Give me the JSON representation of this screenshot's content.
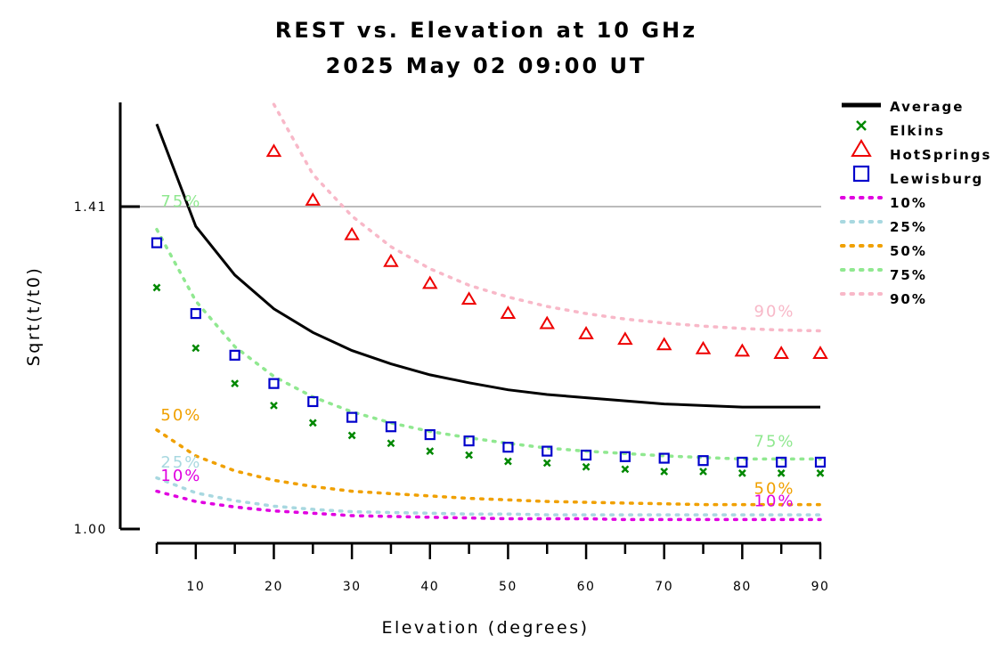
{
  "chart_data": {
    "type": "scatter",
    "title": "REST vs. Elevation at 10 GHz",
    "subtitle": "2025 May 02 09:00 UT",
    "xlabel": "Elevation (degrees)",
    "ylabel": "Sqrt(t/t0)",
    "xlim": [
      5,
      90
    ],
    "ylim": [
      1.0,
      1.54
    ],
    "x_ticks": [
      "10",
      "20",
      "30",
      "40",
      "50",
      "60",
      "70",
      "80",
      "90"
    ],
    "y_ticks": [
      "1.00",
      "1.41"
    ],
    "reference_line": 1.41,
    "legend_position": "right",
    "legend": [
      "Average",
      "Elkins",
      "HotSprings",
      "Lewisburg",
      "10%",
      "25%",
      "50%",
      "75%",
      "90%"
    ],
    "series": [
      {
        "name": "Average",
        "style": "line",
        "color": "#000000",
        "x": [
          5,
          10,
          15,
          20,
          25,
          30,
          35,
          40,
          45,
          50,
          55,
          60,
          65,
          70,
          75,
          80,
          85,
          90
        ],
        "y": [
          1.515,
          1.385,
          1.323,
          1.28,
          1.25,
          1.227,
          1.21,
          1.196,
          1.186,
          1.177,
          1.171,
          1.167,
          1.163,
          1.159,
          1.157,
          1.155,
          1.155,
          1.155
        ]
      },
      {
        "name": "Elkins",
        "style": "x",
        "color": "#008800",
        "x": [
          5,
          10,
          15,
          20,
          25,
          30,
          35,
          40,
          45,
          50,
          55,
          60,
          65,
          70,
          75,
          80,
          85,
          90
        ],
        "y": [
          1.307,
          1.23,
          1.185,
          1.157,
          1.135,
          1.119,
          1.109,
          1.099,
          1.094,
          1.086,
          1.084,
          1.079,
          1.076,
          1.073,
          1.073,
          1.071,
          1.071,
          1.071
        ]
      },
      {
        "name": "HotSprings",
        "style": "triangle",
        "color": "#ee0000",
        "x": [
          20,
          25,
          30,
          35,
          40,
          45,
          50,
          55,
          60,
          65,
          70,
          75,
          80,
          85,
          90
        ],
        "y": [
          1.48,
          1.418,
          1.374,
          1.34,
          1.312,
          1.292,
          1.274,
          1.261,
          1.248,
          1.241,
          1.234,
          1.229,
          1.226,
          1.223,
          1.223
        ]
      },
      {
        "name": "Lewisburg",
        "style": "square",
        "color": "#0000cc",
        "x": [
          5,
          10,
          15,
          20,
          25,
          30,
          35,
          40,
          45,
          50,
          55,
          60,
          65,
          70,
          75,
          80,
          85,
          90
        ],
        "y": [
          1.364,
          1.274,
          1.221,
          1.185,
          1.162,
          1.142,
          1.13,
          1.12,
          1.112,
          1.104,
          1.099,
          1.094,
          1.092,
          1.09,
          1.087,
          1.085,
          1.085,
          1.085
        ]
      },
      {
        "name": "10%",
        "style": "dotted",
        "color": "#e000e0",
        "x": [
          5,
          10,
          15,
          20,
          25,
          30,
          35,
          40,
          45,
          50,
          55,
          60,
          65,
          70,
          75,
          80,
          85,
          90
        ],
        "y": [
          1.048,
          1.035,
          1.028,
          1.023,
          1.02,
          1.017,
          1.016,
          1.015,
          1.014,
          1.013,
          1.013,
          1.013,
          1.012,
          1.012,
          1.012,
          1.012,
          1.012,
          1.012
        ]
      },
      {
        "name": "25%",
        "style": "dotted",
        "color": "#a8d8e0",
        "x": [
          5,
          10,
          15,
          20,
          25,
          30,
          35,
          40,
          45,
          50,
          55,
          60,
          65,
          70,
          75,
          80,
          85,
          90
        ],
        "y": [
          1.065,
          1.046,
          1.036,
          1.029,
          1.025,
          1.022,
          1.021,
          1.02,
          1.019,
          1.019,
          1.018,
          1.018,
          1.018,
          1.018,
          1.018,
          1.018,
          1.018,
          1.018
        ]
      },
      {
        "name": "50%",
        "style": "dotted",
        "color": "#f0a000",
        "x": [
          5,
          10,
          15,
          20,
          25,
          30,
          35,
          40,
          45,
          50,
          55,
          60,
          65,
          70,
          75,
          80,
          85,
          90
        ],
        "y": [
          1.126,
          1.093,
          1.074,
          1.062,
          1.054,
          1.048,
          1.045,
          1.042,
          1.039,
          1.037,
          1.035,
          1.034,
          1.033,
          1.032,
          1.031,
          1.031,
          1.031,
          1.031
        ]
      },
      {
        "name": "75%",
        "style": "dotted",
        "color": "#90e890",
        "x": [
          5,
          10,
          15,
          20,
          25,
          30,
          35,
          40,
          45,
          50,
          55,
          60,
          65,
          70,
          75,
          80,
          85,
          90
        ],
        "y": [
          1.381,
          1.29,
          1.232,
          1.194,
          1.168,
          1.149,
          1.135,
          1.124,
          1.116,
          1.109,
          1.103,
          1.099,
          1.096,
          1.093,
          1.091,
          1.089,
          1.089,
          1.089
        ]
      },
      {
        "name": "90%",
        "style": "dotted",
        "color": "#f8b8c8",
        "x": [
          20,
          25,
          30,
          35,
          40,
          45,
          50,
          55,
          60,
          65,
          70,
          75,
          80,
          85,
          90
        ],
        "y": [
          1.54,
          1.451,
          1.398,
          1.359,
          1.331,
          1.31,
          1.295,
          1.283,
          1.274,
          1.267,
          1.262,
          1.258,
          1.255,
          1.253,
          1.252
        ]
      }
    ],
    "curve_labels": [
      {
        "text": "75%",
        "color": "#90e890",
        "x": 5.5,
        "y": 1.41
      },
      {
        "text": "50%",
        "color": "#f0a000",
        "x": 5.5,
        "y": 1.138
      },
      {
        "text": "25%",
        "color": "#a8d8e0",
        "x": 5.5,
        "y": 1.078
      },
      {
        "text": "10%",
        "color": "#e000e0",
        "x": 5.5,
        "y": 1.061
      },
      {
        "text": "90%",
        "color": "#f8b8c8",
        "x": 81.5,
        "y": 1.27
      },
      {
        "text": "75%",
        "color": "#90e890",
        "x": 81.5,
        "y": 1.105
      },
      {
        "text": "50%",
        "color": "#f0a000",
        "x": 81.5,
        "y": 1.045
      },
      {
        "text": "10%",
        "color": "#e000e0",
        "x": 81.5,
        "y": 1.029
      }
    ]
  }
}
